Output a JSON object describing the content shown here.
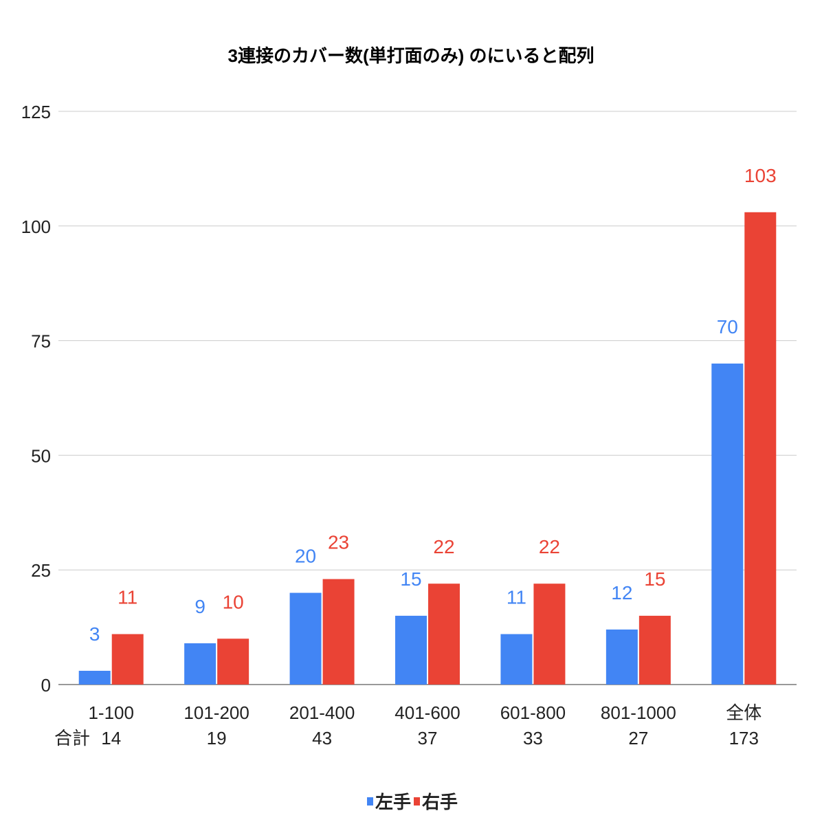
{
  "chart_data": {
    "type": "bar",
    "title": "3連接のカバー数(単打面のみ) のにいると配列",
    "categories": [
      "1-100",
      "101-200",
      "201-400",
      "401-600",
      "601-800",
      "801-1000",
      "全体"
    ],
    "totals_label": "合計",
    "totals": [
      "14",
      "19",
      "43",
      "37",
      "33",
      "27",
      "173"
    ],
    "series": [
      {
        "name": "左手",
        "color": "#4285f4",
        "values": [
          3,
          9,
          20,
          15,
          11,
          12,
          70
        ]
      },
      {
        "name": "右手",
        "color": "#ea4335",
        "values": [
          11,
          10,
          23,
          22,
          22,
          15,
          103
        ]
      }
    ],
    "ylim": [
      0,
      125
    ],
    "yticks": [
      0,
      25,
      50,
      75,
      100,
      125
    ],
    "grid": true,
    "legend": "bottom",
    "xlabel": "",
    "ylabel": ""
  }
}
